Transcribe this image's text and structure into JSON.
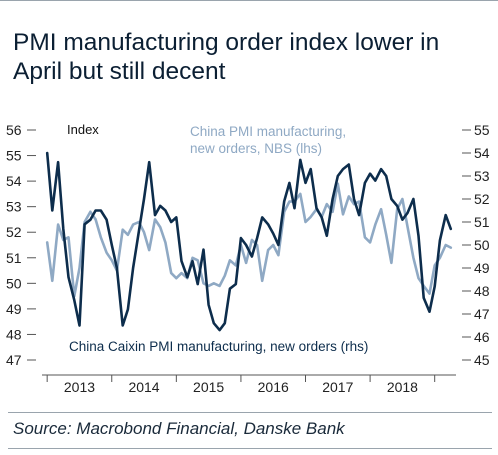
{
  "title": "PMI manufacturing order index lower in April but still decent",
  "source": "Source: Macrobond Financial, Danske Bank",
  "colors": {
    "nbs": "#8fa9c4",
    "caixin": "#0d2d4c",
    "text": "#0b1f33",
    "axis": "#555555"
  },
  "chart_data": {
    "type": "line",
    "left_axis_label": "Index",
    "xlim": [
      2012.92,
      2019.33
    ],
    "ylim_left": [
      47,
      56
    ],
    "ylim_right": [
      45,
      55
    ],
    "left_ticks": [
      47,
      48,
      49,
      50,
      51,
      52,
      53,
      54,
      55,
      56
    ],
    "right_ticks": [
      45,
      46,
      47,
      48,
      49,
      50,
      51,
      52,
      53,
      54,
      55
    ],
    "x_ticks": [
      {
        "label": "2013",
        "x": 2013.5
      },
      {
        "label": "2014",
        "x": 2014.5
      },
      {
        "label": "2015",
        "x": 2015.5
      },
      {
        "label": "2016",
        "x": 2016.5
      },
      {
        "label": "2017",
        "x": 2017.5
      },
      {
        "label": "2018",
        "x": 2018.5
      }
    ],
    "year_boundaries": [
      2014,
      2015,
      2016,
      2017,
      2018,
      2019
    ],
    "series": [
      {
        "name": "China PMI manufacturing, new orders, NBS (lhs)",
        "axis": "left",
        "x": [
          2013.0,
          2013.08,
          2013.17,
          2013.25,
          2013.33,
          2013.42,
          2013.5,
          2013.58,
          2013.67,
          2013.75,
          2013.83,
          2013.92,
          2014.0,
          2014.08,
          2014.17,
          2014.25,
          2014.33,
          2014.42,
          2014.5,
          2014.58,
          2014.67,
          2014.75,
          2014.83,
          2014.92,
          2015.0,
          2015.08,
          2015.17,
          2015.25,
          2015.33,
          2015.42,
          2015.5,
          2015.58,
          2015.67,
          2015.75,
          2015.83,
          2015.92,
          2016.0,
          2016.08,
          2016.17,
          2016.25,
          2016.33,
          2016.42,
          2016.5,
          2016.58,
          2016.67,
          2016.75,
          2016.83,
          2016.92,
          2017.0,
          2017.08,
          2017.17,
          2017.25,
          2017.33,
          2017.42,
          2017.5,
          2017.58,
          2017.67,
          2017.75,
          2017.83,
          2017.92,
          2018.0,
          2018.08,
          2018.17,
          2018.25,
          2018.33,
          2018.42,
          2018.5,
          2018.58,
          2018.67,
          2018.75,
          2018.83,
          2018.92,
          2019.0,
          2019.08,
          2019.17,
          2019.25
        ],
        "values": [
          51.6,
          50.1,
          52.3,
          51.7,
          51.8,
          49.5,
          50.6,
          52.4,
          52.8,
          52.5,
          51.8,
          51.2,
          50.9,
          50.5,
          52.1,
          51.9,
          52.3,
          52.4,
          52.0,
          51.3,
          52.5,
          52.2,
          51.6,
          50.4,
          50.2,
          50.4,
          50.2,
          51.0,
          50.9,
          50.0,
          49.9,
          50.0,
          49.9,
          50.3,
          50.9,
          50.7,
          51.5,
          50.8,
          51.7,
          51.5,
          50.1,
          51.3,
          51.5,
          51.1,
          52.8,
          53.2,
          53.2,
          53.5,
          52.4,
          52.6,
          52.9,
          52.6,
          53.1,
          52.8,
          53.9,
          52.7,
          53.4,
          53.1,
          53.2,
          51.8,
          51.6,
          52.3,
          52.9,
          51.9,
          50.8,
          52.9,
          53.3,
          52.2,
          51.0,
          50.2,
          49.9,
          49.6,
          50.7,
          51.0,
          51.5,
          51.4
        ]
      },
      {
        "name": "China Caixin PMI manufacturing, new orders (rhs)",
        "axis": "right",
        "x": [
          2013.0,
          2013.08,
          2013.17,
          2013.25,
          2013.33,
          2013.42,
          2013.5,
          2013.58,
          2013.67,
          2013.75,
          2013.83,
          2013.92,
          2014.0,
          2014.08,
          2014.17,
          2014.25,
          2014.33,
          2014.42,
          2014.5,
          2014.58,
          2014.67,
          2014.75,
          2014.83,
          2014.92,
          2015.0,
          2015.08,
          2015.17,
          2015.25,
          2015.33,
          2015.42,
          2015.5,
          2015.58,
          2015.67,
          2015.75,
          2015.83,
          2015.92,
          2016.0,
          2016.08,
          2016.17,
          2016.25,
          2016.33,
          2016.42,
          2016.5,
          2016.58,
          2016.67,
          2016.75,
          2016.83,
          2016.92,
          2017.0,
          2017.08,
          2017.17,
          2017.25,
          2017.33,
          2017.42,
          2017.5,
          2017.58,
          2017.67,
          2017.75,
          2017.83,
          2017.92,
          2018.0,
          2018.08,
          2018.17,
          2018.25,
          2018.33,
          2018.42,
          2018.5,
          2018.58,
          2018.67,
          2018.75,
          2018.83,
          2018.92,
          2019.0,
          2019.08,
          2019.17,
          2019.25
        ],
        "values": [
          54.0,
          51.5,
          53.6,
          50.7,
          48.6,
          47.6,
          46.5,
          50.9,
          51.1,
          51.5,
          51.5,
          51.1,
          50.0,
          49.0,
          46.5,
          47.2,
          49.0,
          50.6,
          52.0,
          53.6,
          51.3,
          51.7,
          51.5,
          51.0,
          51.2,
          49.3,
          48.6,
          49.3,
          48.3,
          49.8,
          47.4,
          46.6,
          46.3,
          46.6,
          48.1,
          48.3,
          50.3,
          50.0,
          49.5,
          50.3,
          51.2,
          50.9,
          50.5,
          50.0,
          51.9,
          52.7,
          51.6,
          53.7,
          52.7,
          53.3,
          51.6,
          51.2,
          50.4,
          52.0,
          53.0,
          53.3,
          53.5,
          52.0,
          51.3,
          52.7,
          53.1,
          52.8,
          53.3,
          53.0,
          52.0,
          51.7,
          51.1,
          51.4,
          52.0,
          50.4,
          47.7,
          47.1,
          48.2,
          50.2,
          51.3,
          50.7
        ]
      }
    ],
    "annotations": [
      {
        "text": "China PMI manufacturing,",
        "series": 0
      },
      {
        "text": "new orders, NBS (lhs)",
        "series": 0
      },
      {
        "text": "China Caixin PMI manufacturing, new orders (rhs)",
        "series": 1
      }
    ]
  }
}
